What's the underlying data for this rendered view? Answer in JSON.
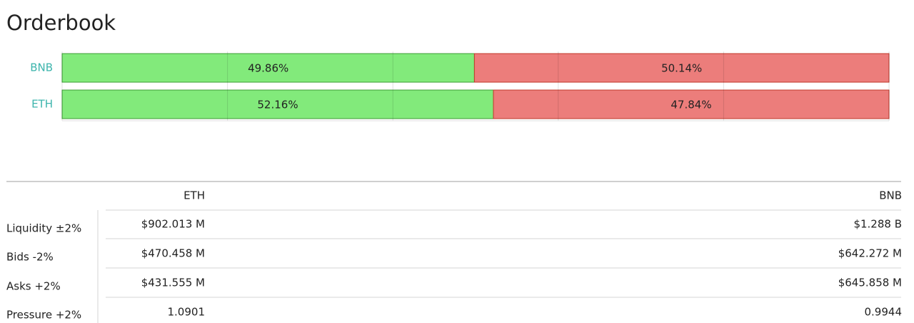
{
  "title": "Orderbook",
  "chart_data": {
    "type": "bar",
    "orientation": "horizontal",
    "stacked": true,
    "categories": [
      "BNB",
      "ETH"
    ],
    "series": [
      {
        "color": "#82ea7b",
        "values": [
          49.86,
          52.16
        ],
        "value_labels": [
          "49.86%",
          "52.16%"
        ]
      },
      {
        "color": "#ec7d7b",
        "values": [
          50.14,
          47.84
        ],
        "value_labels": [
          "50.14%",
          "47.84%"
        ]
      }
    ],
    "xlim": [
      0,
      100
    ],
    "xticks": [
      0,
      20,
      40,
      60,
      80,
      100
    ],
    "grid": true
  },
  "table": {
    "columns": [
      "ETH",
      "BNB"
    ],
    "rows": [
      [
        "Liquidity ±2%",
        "$902.013 M",
        "$1.288 B"
      ],
      [
        "Bids -2%",
        "$470.458 M",
        "$642.272 M"
      ],
      [
        "Asks +2%",
        "$431.555 M",
        "$645.858 M"
      ],
      [
        "Pressure +2%",
        "1.0901",
        "0.9944"
      ]
    ]
  }
}
